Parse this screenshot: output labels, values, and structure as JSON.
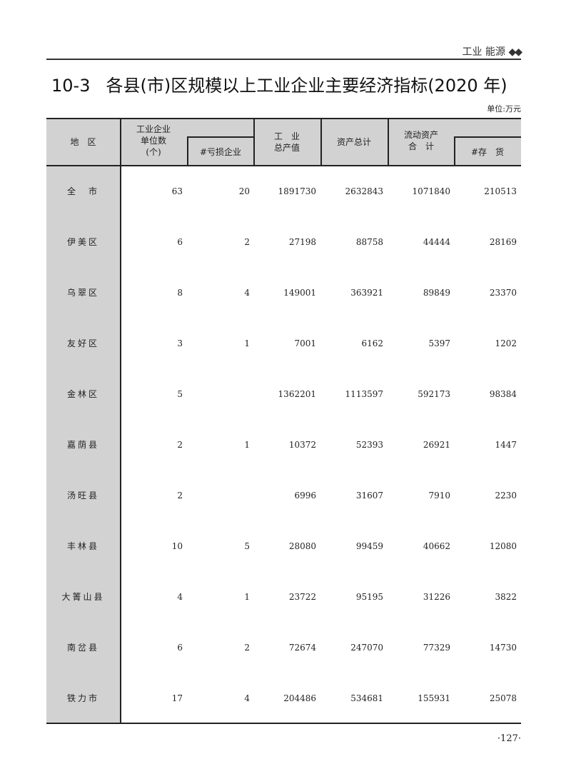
{
  "running_header": {
    "section": "工业 能源",
    "ornament": "◆◆"
  },
  "title": {
    "number": "10-3",
    "text": "各县(市)区规模以上工业企业主要经济指标(2020 年)"
  },
  "unit": "单位:万元",
  "columns": {
    "region": "地　区",
    "enterprises": [
      "工业企业",
      "单位数",
      "(个)"
    ],
    "loss_making": "#亏损企业",
    "output": [
      "工　业",
      "总产值"
    ],
    "total_assets": "资产总计",
    "current_assets": [
      "流动资产",
      "合　计"
    ],
    "inventory": "#存　货"
  },
  "rows": [
    {
      "region": "全　市",
      "enterprises": "63",
      "loss_making": "20",
      "output": "1891730",
      "total_assets": "2632843",
      "current_assets": "1071840",
      "inventory": "210513"
    },
    {
      "region": "伊美区",
      "enterprises": "6",
      "loss_making": "2",
      "output": "27198",
      "total_assets": "88758",
      "current_assets": "44444",
      "inventory": "28169"
    },
    {
      "region": "乌翠区",
      "enterprises": "8",
      "loss_making": "4",
      "output": "149001",
      "total_assets": "363921",
      "current_assets": "89849",
      "inventory": "23370"
    },
    {
      "region": "友好区",
      "enterprises": "3",
      "loss_making": "1",
      "output": "7001",
      "total_assets": "6162",
      "current_assets": "5397",
      "inventory": "1202"
    },
    {
      "region": "金林区",
      "enterprises": "5",
      "loss_making": "",
      "output": "1362201",
      "total_assets": "1113597",
      "current_assets": "592173",
      "inventory": "98384"
    },
    {
      "region": "嘉荫县",
      "enterprises": "2",
      "loss_making": "1",
      "output": "10372",
      "total_assets": "52393",
      "current_assets": "26921",
      "inventory": "1447"
    },
    {
      "region": "汤旺县",
      "enterprises": "2",
      "loss_making": "",
      "output": "6996",
      "total_assets": "31607",
      "current_assets": "7910",
      "inventory": "2230"
    },
    {
      "region": "丰林县",
      "enterprises": "10",
      "loss_making": "5",
      "output": "28080",
      "total_assets": "99459",
      "current_assets": "40662",
      "inventory": "12080"
    },
    {
      "region": "大箐山县",
      "enterprises": "4",
      "loss_making": "1",
      "output": "23722",
      "total_assets": "95195",
      "current_assets": "31226",
      "inventory": "3822"
    },
    {
      "region": "南岔县",
      "enterprises": "6",
      "loss_making": "2",
      "output": "72674",
      "total_assets": "247070",
      "current_assets": "77329",
      "inventory": "14730"
    },
    {
      "region": "铁力市",
      "enterprises": "17",
      "loss_making": "4",
      "output": "204486",
      "total_assets": "534681",
      "current_assets": "155931",
      "inventory": "25078"
    }
  ],
  "page_number": "·127·"
}
